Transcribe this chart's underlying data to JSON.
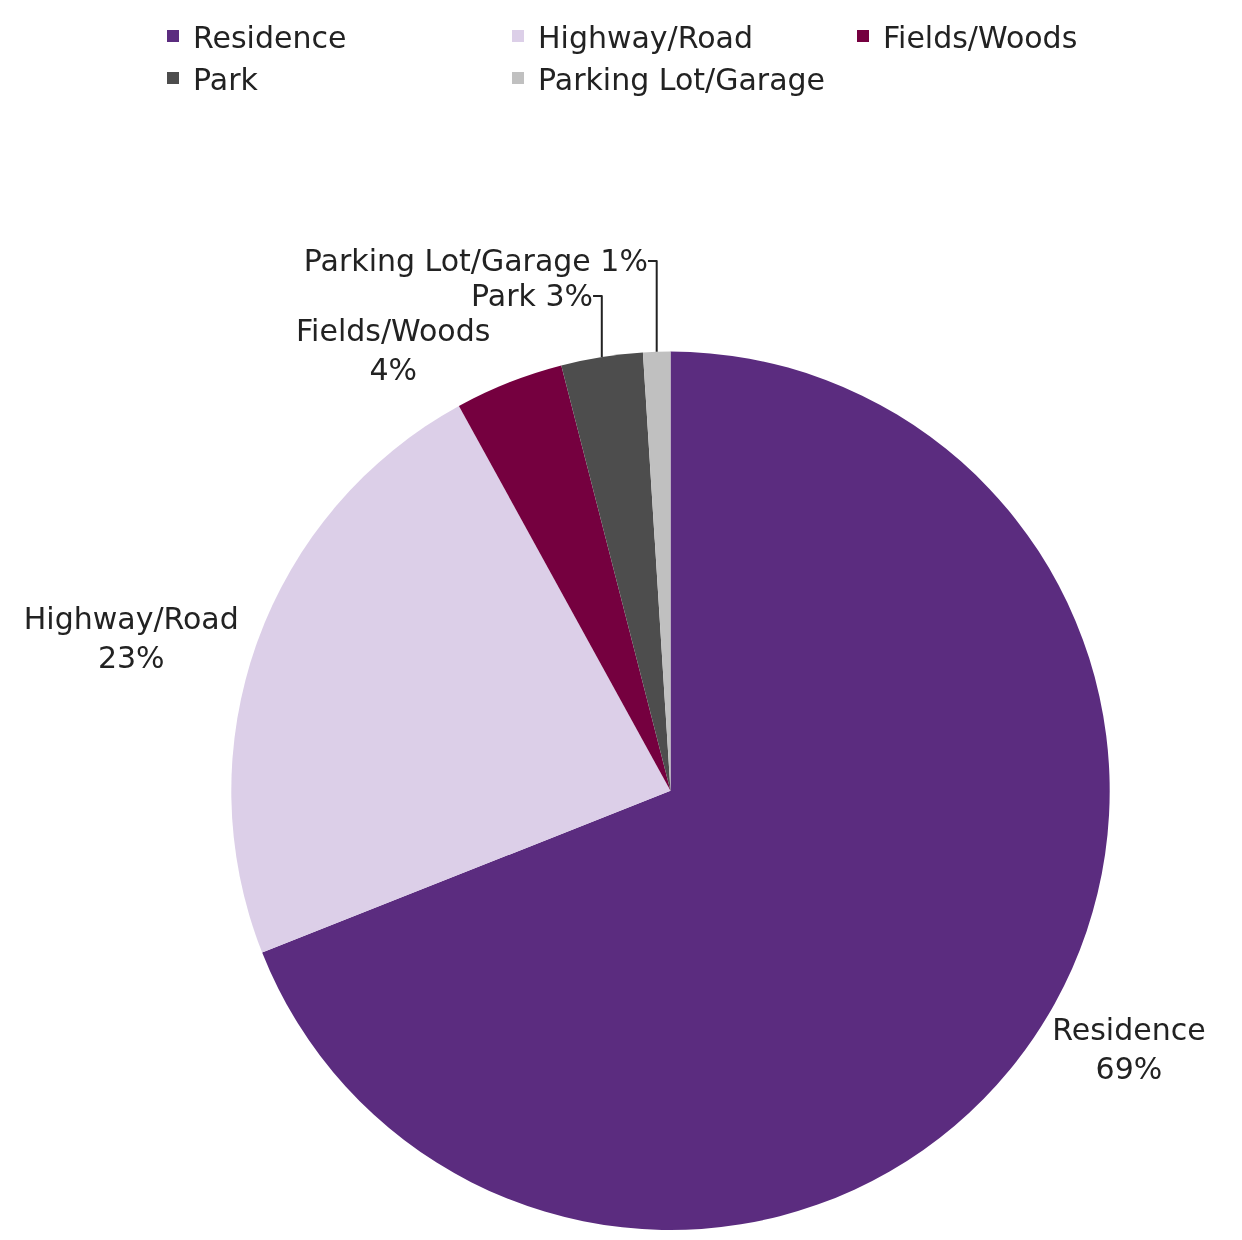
{
  "chart_data": {
    "type": "pie",
    "categories": [
      "Residence",
      "Highway/Road",
      "Fields/Woods",
      "Park",
      "Parking Lot/Garage"
    ],
    "values": [
      69,
      23,
      4,
      3,
      1
    ],
    "colors": [
      "#5b2c7f",
      "#dccfe8",
      "#75003f",
      "#4d4d4d",
      "#c0c0c0"
    ],
    "value_labels": [
      "Residence\n69%",
      "Highway/Road\n23%",
      "Fields/Woods\n4%",
      "Park 3%",
      "Parking Lot/Garage 1%"
    ],
    "legend": "top"
  }
}
